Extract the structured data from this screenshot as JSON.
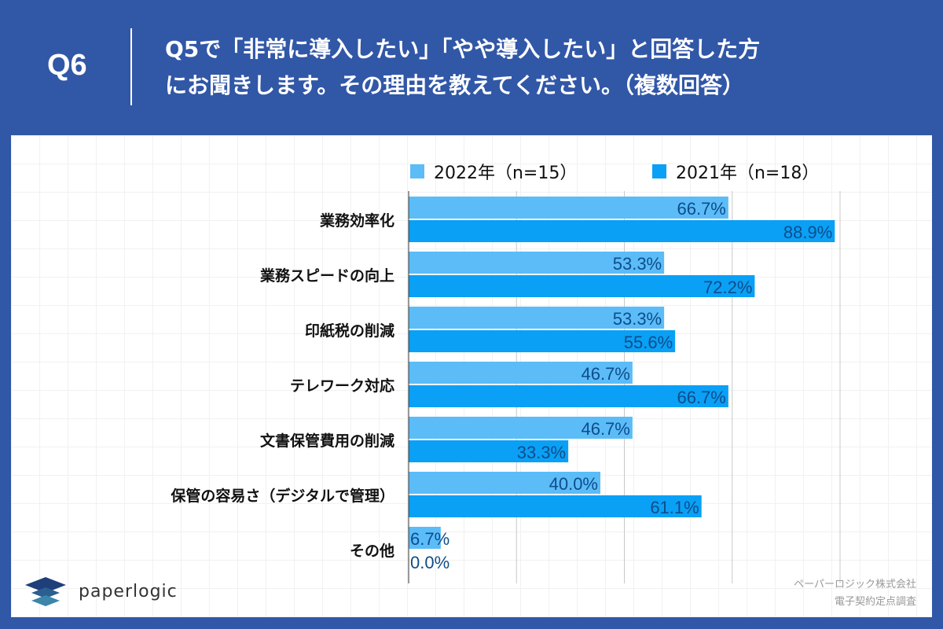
{
  "header": {
    "q": "Q6",
    "title_line1": "Q5で「非常に導入したい」「やや導入したい」と回答した方",
    "title_line2": "にお聞きします。その理由を教えてください。（複数回答）"
  },
  "chart_data": {
    "type": "bar",
    "orientation": "horizontal",
    "categories": [
      "業務効率化",
      "業務スピードの向上",
      "印紙税の削減",
      "テレワーク対応",
      "文書保管費用の削減",
      "保管の容易さ（デジタルで管理）",
      "その他"
    ],
    "series": [
      {
        "name": "2022年（n=15）",
        "color": "#5bbcf8",
        "values": [
          66.7,
          53.3,
          53.3,
          46.7,
          46.7,
          40.0,
          6.7
        ]
      },
      {
        "name": "2021年（n=18）",
        "color": "#0aa0f5",
        "values": [
          88.9,
          72.2,
          55.6,
          66.7,
          33.3,
          61.1,
          0.0
        ]
      }
    ],
    "value_suffix": "%",
    "xlim": [
      0,
      90
    ],
    "grid": true,
    "legend": "top",
    "label_color": "#0d4d8a"
  },
  "footer": {
    "logo": "paperlogic",
    "credit_line1": "ペーパーロジック株式会社",
    "credit_line2": "電子契約定点調査"
  }
}
